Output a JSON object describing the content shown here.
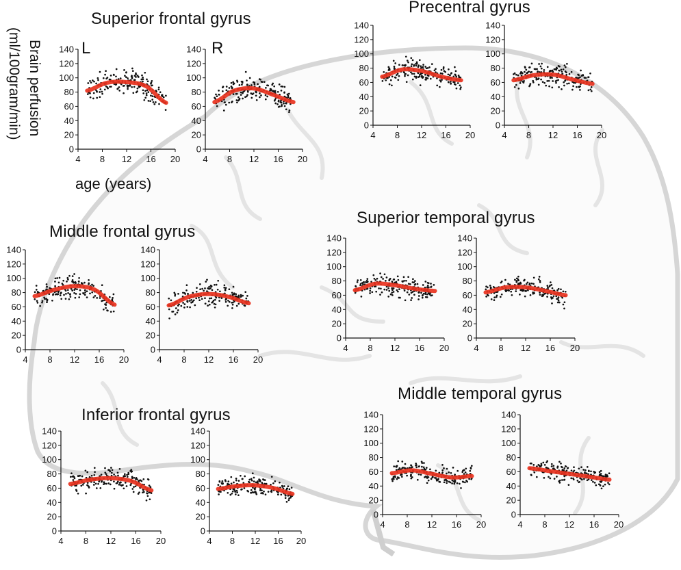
{
  "labels": {
    "ylabel_line1": "Brain perfusion",
    "ylabel_line2": "(ml/100gram/min)",
    "xlabel": "age (years)",
    "hemisphere_left": "L",
    "hemisphere_right": "R"
  },
  "colors": {
    "fit": "#e8321e",
    "points": "#111111",
    "axis": "#111111",
    "brain_outline": "#d9d9d9"
  },
  "chart_data": [
    {
      "id": "sfg-l",
      "type": "scatter",
      "region": "Superior frontal gyrus",
      "hemisphere": "L",
      "xlim": [
        4,
        20
      ],
      "ylim": [
        0,
        140
      ],
      "xticks": [
        4,
        8,
        12,
        16,
        20
      ],
      "yticks": [
        0,
        20,
        40,
        60,
        80,
        100,
        120,
        140
      ],
      "x_range": [
        5.5,
        18.5
      ],
      "fit_y": [
        82,
        93,
        94,
        88,
        65
      ],
      "spread": 14,
      "n": 200,
      "seed": 11
    },
    {
      "id": "sfg-r",
      "type": "scatter",
      "region": "Superior frontal gyrus",
      "hemisphere": "R",
      "xlim": [
        4,
        20
      ],
      "ylim": [
        0,
        140
      ],
      "xticks": [
        4,
        8,
        12,
        16,
        20
      ],
      "yticks": [
        0,
        20,
        40,
        60,
        80,
        100,
        120,
        140
      ],
      "x_range": [
        5.5,
        18.5
      ],
      "fit_y": [
        66,
        82,
        85,
        76,
        66
      ],
      "spread": 14,
      "n": 200,
      "seed": 12
    },
    {
      "id": "pcg-l",
      "type": "scatter",
      "region": "Precentral gyrus",
      "hemisphere": "L",
      "xlim": [
        4,
        20
      ],
      "ylim": [
        0,
        140
      ],
      "xticks": [
        4,
        8,
        12,
        16,
        20
      ],
      "yticks": [
        0,
        20,
        40,
        60,
        80,
        100,
        120,
        140
      ],
      "x_range": [
        5.5,
        18.5
      ],
      "fit_y": [
        68,
        78,
        76,
        68,
        63
      ],
      "spread": 13,
      "n": 200,
      "seed": 13
    },
    {
      "id": "pcg-r",
      "type": "scatter",
      "region": "Precentral gyrus",
      "hemisphere": "R",
      "xlim": [
        4,
        20
      ],
      "ylim": [
        0,
        140
      ],
      "xticks": [
        4,
        8,
        12,
        16,
        20
      ],
      "yticks": [
        0,
        20,
        40,
        60,
        80,
        100,
        120,
        140
      ],
      "x_range": [
        5.5,
        18.5
      ],
      "fit_y": [
        63,
        70,
        71,
        64,
        58
      ],
      "spread": 13,
      "n": 200,
      "seed": 14
    },
    {
      "id": "mfg-l",
      "type": "scatter",
      "region": "Middle frontal gyrus",
      "hemisphere": "L",
      "xlim": [
        4,
        20
      ],
      "ylim": [
        0,
        140
      ],
      "xticks": [
        4,
        8,
        12,
        16,
        20
      ],
      "yticks": [
        0,
        20,
        40,
        60,
        80,
        100,
        120,
        140
      ],
      "x_range": [
        5.5,
        18.5
      ],
      "fit_y": [
        75,
        84,
        89,
        84,
        63
      ],
      "spread": 14,
      "n": 200,
      "seed": 15
    },
    {
      "id": "mfg-r",
      "type": "scatter",
      "region": "Middle frontal gyrus",
      "hemisphere": "R",
      "xlim": [
        4,
        20
      ],
      "ylim": [
        0,
        140
      ],
      "xticks": [
        4,
        8,
        12,
        16,
        20
      ],
      "yticks": [
        0,
        20,
        40,
        60,
        80,
        100,
        120,
        140
      ],
      "x_range": [
        5.5,
        18.5
      ],
      "fit_y": [
        62,
        74,
        78,
        74,
        65
      ],
      "spread": 14,
      "n": 200,
      "seed": 16
    },
    {
      "id": "stg-l",
      "type": "scatter",
      "region": "Superior temporal gyrus",
      "hemisphere": "L",
      "xlim": [
        4,
        20
      ],
      "ylim": [
        0,
        140
      ],
      "xticks": [
        4,
        8,
        12,
        16,
        20
      ],
      "yticks": [
        0,
        20,
        40,
        60,
        80,
        100,
        120,
        140
      ],
      "x_range": [
        5.5,
        18.5
      ],
      "fit_y": [
        67,
        76,
        74,
        69,
        66
      ],
      "spread": 12,
      "n": 200,
      "seed": 17
    },
    {
      "id": "stg-r",
      "type": "scatter",
      "region": "Superior temporal gyrus",
      "hemisphere": "R",
      "xlim": [
        4,
        20
      ],
      "ylim": [
        0,
        140
      ],
      "xticks": [
        4,
        8,
        12,
        16,
        20
      ],
      "yticks": [
        0,
        20,
        40,
        60,
        80,
        100,
        120,
        140
      ],
      "x_range": [
        5.5,
        18.5
      ],
      "fit_y": [
        64,
        71,
        71,
        66,
        60
      ],
      "spread": 12,
      "n": 200,
      "seed": 18
    },
    {
      "id": "ifg-l",
      "type": "scatter",
      "region": "Inferior frontal gyrus",
      "hemisphere": "L",
      "xlim": [
        4,
        20
      ],
      "ylim": [
        0,
        140
      ],
      "xticks": [
        4,
        8,
        12,
        16,
        20
      ],
      "yticks": [
        0,
        20,
        40,
        60,
        80,
        100,
        120,
        140
      ],
      "x_range": [
        5.5,
        18.5
      ],
      "fit_y": [
        66,
        72,
        74,
        70,
        57
      ],
      "spread": 12,
      "n": 200,
      "seed": 19
    },
    {
      "id": "ifg-r",
      "type": "scatter",
      "region": "Inferior frontal gyrus",
      "hemisphere": "R",
      "xlim": [
        4,
        20
      ],
      "ylim": [
        0,
        140
      ],
      "xticks": [
        4,
        8,
        12,
        16,
        20
      ],
      "yticks": [
        0,
        20,
        40,
        60,
        80,
        100,
        120,
        140
      ],
      "x_range": [
        5.5,
        18.5
      ],
      "fit_y": [
        59,
        63,
        64,
        60,
        52
      ],
      "spread": 11,
      "n": 200,
      "seed": 20
    },
    {
      "id": "mtg-l",
      "type": "scatter",
      "region": "Middle temporal gyrus",
      "hemisphere": "L",
      "xlim": [
        4,
        20
      ],
      "ylim": [
        0,
        140
      ],
      "xticks": [
        4,
        8,
        12,
        16,
        20
      ],
      "yticks": [
        0,
        20,
        40,
        60,
        80,
        100,
        120,
        140
      ],
      "x_range": [
        5.5,
        18.5
      ],
      "fit_y": [
        58,
        62,
        57,
        52,
        54
      ],
      "spread": 11,
      "n": 200,
      "seed": 21
    },
    {
      "id": "mtg-r",
      "type": "scatter",
      "region": "Middle temporal gyrus",
      "hemisphere": "R",
      "xlim": [
        4,
        20
      ],
      "ylim": [
        0,
        140
      ],
      "xticks": [
        4,
        8,
        12,
        16,
        20
      ],
      "yticks": [
        0,
        20,
        40,
        60,
        80,
        100,
        120,
        140
      ],
      "x_range": [
        5.5,
        18.5
      ],
      "fit_y": [
        65,
        61,
        57,
        53,
        49
      ],
      "spread": 11,
      "n": 200,
      "seed": 22
    }
  ]
}
